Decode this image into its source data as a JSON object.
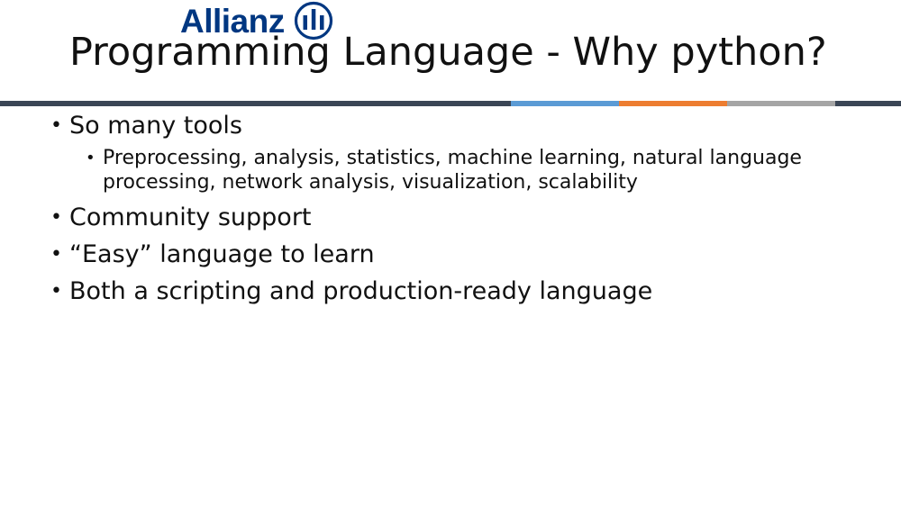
{
  "logo": {
    "text": "Allianz",
    "brand_color": "#003781",
    "mark_icon": "allianz-eagle-mark-icon"
  },
  "accent_bar_colors": [
    "#3B4656",
    "#5B9BD5",
    "#ED7D31",
    "#A5A5A5",
    "#3B4656"
  ],
  "slide": {
    "title": "Programming Language - Why python?",
    "bullets": [
      {
        "text": "So many tools",
        "sub": [
          "Preprocessing, analysis, statistics, machine learning, natural language processing, network analysis, visualization, scalability"
        ]
      },
      {
        "text": "Community support"
      },
      {
        "text": "“Easy” language to learn"
      },
      {
        "text": "Both a scripting and production-ready language"
      }
    ],
    "bullet_glyph": "•"
  }
}
